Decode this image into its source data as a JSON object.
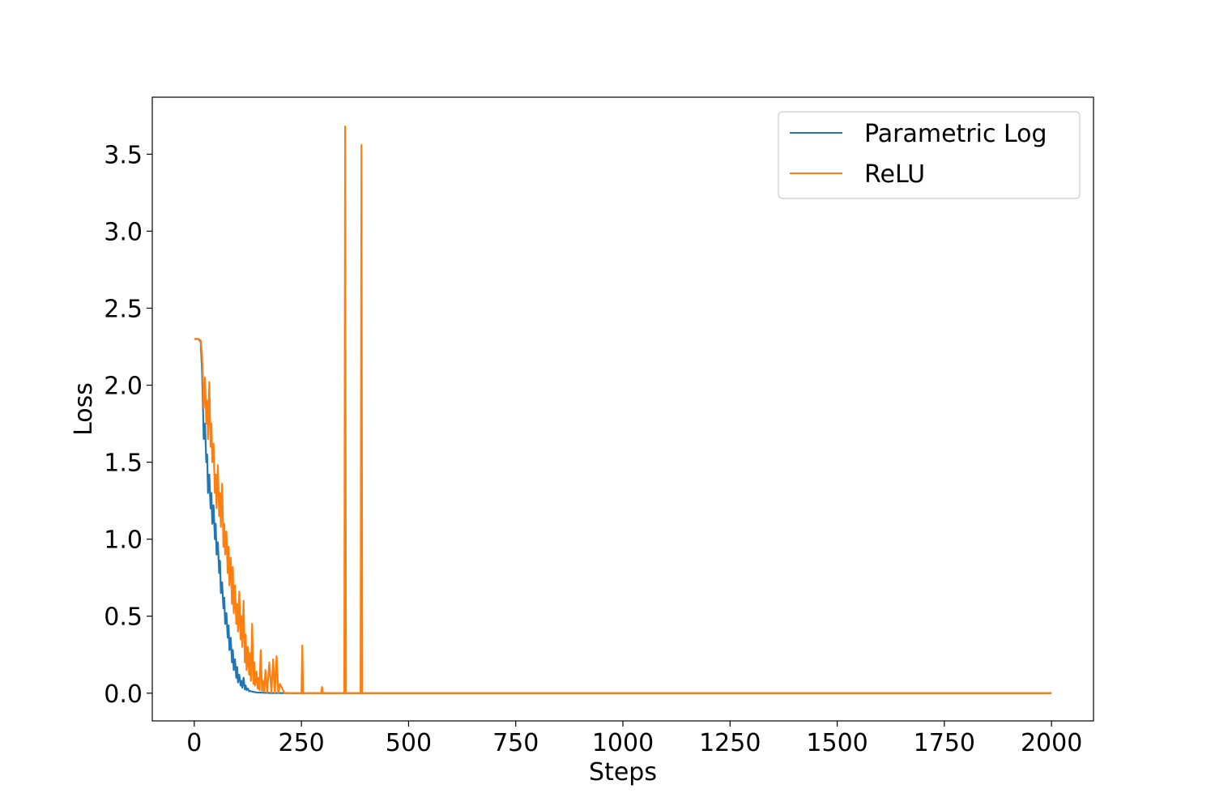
{
  "chart_data": {
    "type": "line",
    "title": "",
    "xlabel": "Steps",
    "ylabel": "Loss",
    "xlim": [
      -98,
      2098
    ],
    "ylim": [
      -0.18,
      3.87
    ],
    "xticks": [
      0,
      250,
      500,
      750,
      1000,
      1250,
      1500,
      1750,
      2000
    ],
    "xtick_labels": [
      "0",
      "250",
      "500",
      "750",
      "1000",
      "1250",
      "1500",
      "1750",
      "2000"
    ],
    "yticks": [
      0.0,
      0.5,
      1.0,
      1.5,
      2.0,
      2.5,
      3.0,
      3.5
    ],
    "ytick_labels": [
      "0.0",
      "0.5",
      "1.0",
      "1.5",
      "2.0",
      "2.5",
      "3.0",
      "3.5"
    ],
    "grid": false,
    "legend_position": "top-right",
    "series": [
      {
        "name": "Parametric Log",
        "color": "#1f77b4",
        "x": [
          0,
          5,
          10,
          15,
          18,
          20,
          22,
          25,
          28,
          30,
          32,
          35,
          38,
          40,
          42,
          45,
          48,
          50,
          52,
          55,
          58,
          60,
          62,
          65,
          68,
          70,
          72,
          75,
          78,
          80,
          82,
          85,
          88,
          90,
          92,
          95,
          98,
          100,
          102,
          105,
          108,
          110,
          112,
          115,
          118,
          120,
          122,
          125,
          128,
          130,
          135,
          140,
          145,
          150,
          160,
          170,
          180,
          200,
          230,
          260,
          300,
          350,
          400,
          500,
          750,
          1000,
          1250,
          1500,
          1750,
          2000
        ],
        "y": [
          2.3,
          2.3,
          2.3,
          2.28,
          2.1,
          1.9,
          1.65,
          1.75,
          1.5,
          1.55,
          1.3,
          1.42,
          1.2,
          1.3,
          1.1,
          1.22,
          1.0,
          1.1,
          0.9,
          0.98,
          0.78,
          0.86,
          0.65,
          0.72,
          0.55,
          0.62,
          0.45,
          0.52,
          0.36,
          0.44,
          0.28,
          0.36,
          0.2,
          0.28,
          0.15,
          0.22,
          0.1,
          0.17,
          0.07,
          0.12,
          0.05,
          0.08,
          0.035,
          0.1,
          0.025,
          0.05,
          0.02,
          0.03,
          0.012,
          0.015,
          0.01,
          0.007,
          0.005,
          0.004,
          0.003,
          0.002,
          0.001,
          0.001,
          0.0,
          0.0,
          0.0,
          0.0,
          0.0,
          0.0,
          0.0,
          0.0,
          0.0,
          0.0,
          0.0,
          0.0
        ]
      },
      {
        "name": "ReLU",
        "color": "#ff7f0e",
        "x": [
          0,
          5,
          10,
          15,
          18,
          20,
          22,
          25,
          28,
          30,
          32,
          35,
          38,
          40,
          42,
          45,
          48,
          50,
          52,
          55,
          58,
          60,
          62,
          65,
          68,
          70,
          72,
          75,
          78,
          80,
          82,
          85,
          88,
          90,
          92,
          95,
          98,
          100,
          102,
          105,
          108,
          110,
          112,
          115,
          118,
          120,
          122,
          125,
          128,
          130,
          132,
          135,
          138,
          140,
          142,
          145,
          148,
          150,
          152,
          155,
          158,
          160,
          163,
          166,
          170,
          175,
          180,
          184,
          188,
          192,
          196,
          200,
          210,
          220,
          240,
          250,
          252,
          254,
          258,
          280,
          296,
          298,
          300,
          340,
          350,
          352,
          354,
          380,
          388,
          390,
          392,
          400,
          450,
          500,
          750,
          1000,
          1250,
          1500,
          1750,
          2000
        ],
        "y": [
          2.3,
          2.3,
          2.3,
          2.29,
          2.2,
          2.05,
          1.85,
          2.05,
          1.75,
          1.9,
          1.65,
          2.02,
          1.6,
          1.75,
          1.5,
          1.62,
          1.3,
          1.42,
          1.2,
          1.48,
          1.15,
          1.3,
          1.08,
          1.36,
          0.95,
          1.1,
          0.9,
          1.05,
          0.78,
          0.95,
          0.7,
          0.88,
          0.58,
          0.82,
          0.52,
          0.7,
          0.45,
          0.58,
          0.4,
          0.66,
          0.35,
          0.5,
          0.3,
          0.6,
          0.2,
          0.38,
          0.15,
          0.3,
          0.12,
          0.26,
          0.08,
          0.45,
          0.06,
          0.2,
          0.05,
          0.14,
          0.03,
          0.1,
          0.02,
          0.28,
          0.015,
          0.08,
          0.01,
          0.15,
          0.005,
          0.2,
          0.003,
          0.22,
          0.002,
          0.24,
          0.001,
          0.06,
          0.002,
          0.001,
          0.001,
          0.0,
          0.31,
          0.0,
          0.0,
          0.0,
          0.0,
          0.04,
          0.0,
          0.0,
          0.0,
          3.68,
          0.0,
          0.0,
          0.0,
          3.56,
          0.0,
          0.0,
          0.0,
          0.0,
          0.0,
          0.0,
          0.0,
          0.0,
          0.0,
          0.0
        ]
      }
    ]
  }
}
